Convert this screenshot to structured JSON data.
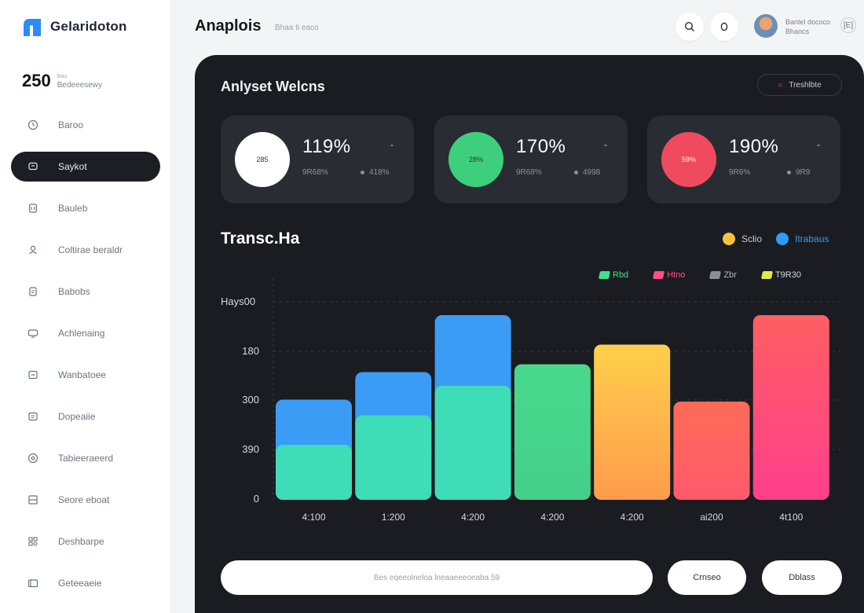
{
  "brand": {
    "name": "Gelaridoton"
  },
  "sidebar_stat": {
    "value": "250",
    "caption_small": "Bau",
    "caption": "Bedeeesewy"
  },
  "sidebar": {
    "items": [
      {
        "label": "Baroo",
        "icon": "clock-icon",
        "active": false
      },
      {
        "label": "Saykot",
        "icon": "chat-icon",
        "active": true
      },
      {
        "label": "Bauleb",
        "icon": "calendar-icon",
        "active": false
      },
      {
        "label": "Coltirae beraldr",
        "icon": "users-icon",
        "active": false
      },
      {
        "label": "Babobs",
        "icon": "document-icon",
        "active": false
      },
      {
        "label": "Achlenaing",
        "icon": "monitor-icon",
        "active": false
      },
      {
        "label": "Wanbatoee",
        "icon": "inbox-icon",
        "active": false
      },
      {
        "label": "Dopeaiie",
        "icon": "message-icon",
        "active": false
      },
      {
        "label": "Tabieeraeerd",
        "icon": "settings-icon",
        "active": false
      },
      {
        "label": "Seore eboat",
        "icon": "grid-icon",
        "active": false
      },
      {
        "label": "Deshbarpe",
        "icon": "apps-icon",
        "active": false
      },
      {
        "label": "Geteeaeie",
        "icon": "folder-icon",
        "active": false
      }
    ]
  },
  "header": {
    "title": "Anaplois",
    "crumb": "Bhaa ti eaco",
    "user_line1": "Bantel dococo",
    "user_line2": "Bhaocs",
    "right_icon": "[E]"
  },
  "panel": {
    "title": "Anlyset Welcns",
    "action_label": "Treshlbte",
    "colors": {
      "panel_bg": "#1b1c21",
      "card_bg": "#2a2c33"
    }
  },
  "kpis": [
    {
      "circle_label": "285",
      "circle_color": "#ffffff",
      "value": "119%",
      "sub1": "9R68%",
      "sub2": "418%",
      "menu": "-"
    },
    {
      "circle_label": "28%",
      "circle_color": "#3ecf7c",
      "value": "170%",
      "sub1": "9R68%",
      "sub2": "4998",
      "menu": "-"
    },
    {
      "circle_label": "59%",
      "circle_color": "#f04a5e",
      "value": "190%",
      "sub1": "9R6%",
      "sub2": "9R9",
      "menu": "-"
    }
  ],
  "chart_data": {
    "type": "bar",
    "title": "Transc.Ha",
    "y_axis_title": "Hays00",
    "y_ticks": [
      "180",
      "300",
      "390",
      "0"
    ],
    "categories": [
      "4:100",
      "1:200",
      "4:200",
      "4:200",
      "4:200",
      "ai200",
      "4t100"
    ],
    "bar_heights_fraction": [
      0.51,
      0.65,
      0.94,
      0.69,
      0.79,
      0.5,
      0.94
    ],
    "lower_segment_fraction": [
      0.28,
      0.43,
      0.58,
      null,
      null,
      null,
      null
    ],
    "legend_top": [
      {
        "label": "Sclio",
        "color": "#f4c23d"
      },
      {
        "label": "Itrabaus",
        "color": "#2e9cf5"
      }
    ],
    "legend_series": [
      {
        "label": "Rbd",
        "color": "#3ee08a"
      },
      {
        "label": "Htno",
        "color": "#ff4f86"
      },
      {
        "label": "Zbr",
        "color": "#8c8f97"
      },
      {
        "label": "T9R30",
        "color": "#e3e84a"
      }
    ],
    "colors": {
      "blue": "#3b9cf6",
      "teal": "#3fdcb8",
      "green_top": "#48d98c",
      "green_bottom": "#44cf8a",
      "orange_top": "#ffd04a",
      "orange_bottom": "#ff9b4d",
      "coral_top": "#ff6b57",
      "coral_bottom": "#ff5a6d",
      "red_top": "#ff5e63",
      "red_bottom": "#ff3f8c"
    }
  },
  "footer": {
    "search_placeholder": "Bes eqeeolneloa lneaaeeeoeaba 59",
    "button1": "Crnseo",
    "button2": "Dblass"
  }
}
